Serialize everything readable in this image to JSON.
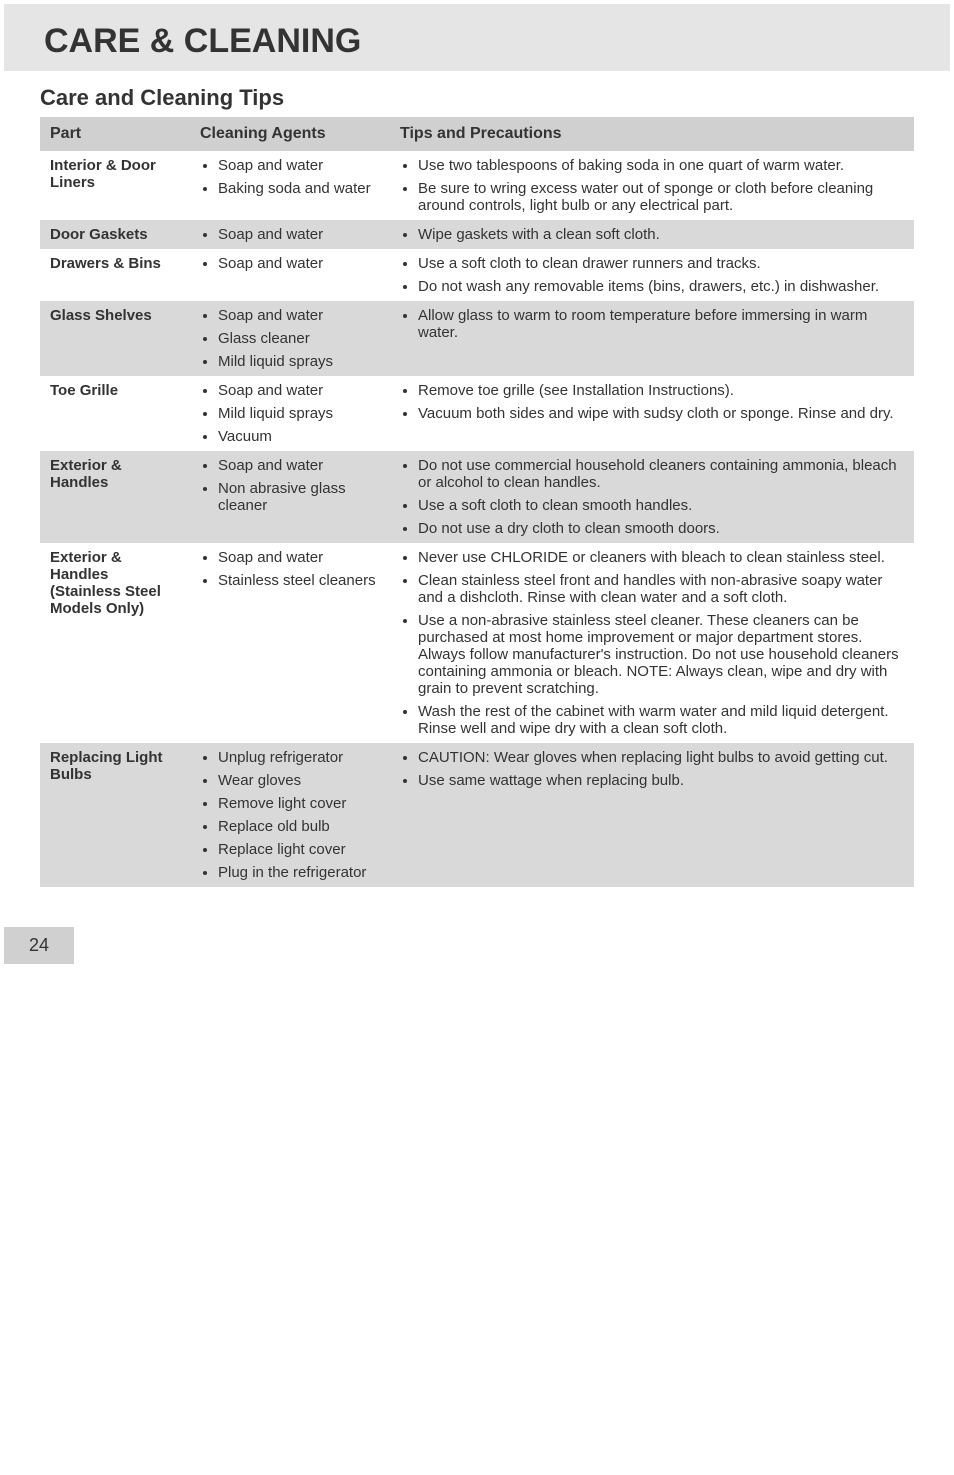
{
  "colors": {
    "header_band": "#e5e5e5",
    "table_header": "#d0d0d0",
    "row_even": "#d9d9d9",
    "row_odd": "#ffffff",
    "text": "#333333",
    "background": "#ffffff",
    "footer_bg": "#d0d0d0"
  },
  "typography": {
    "title_size": 34,
    "subtitle_size": 22,
    "body_size": 15,
    "header_size": 16,
    "font_family": "Arial"
  },
  "title": "CARE & CLEANING",
  "subtitle": "Care and Cleaning Tips",
  "columns": {
    "part": "Part",
    "agents": "Cleaning Agents",
    "tips": "Tips and Precautions"
  },
  "rows": [
    {
      "part": "Interior & Door Liners",
      "agents": [
        "Soap and water",
        "Baking soda and water"
      ],
      "tips": [
        "Use two tablespoons of baking soda in one quart of warm water.",
        "Be sure to wring excess water out of sponge or cloth before cleaning around controls, light bulb or any electrical part."
      ]
    },
    {
      "part": "Door Gaskets",
      "agents": [
        "Soap and water"
      ],
      "tips": [
        "Wipe gaskets with a clean soft cloth."
      ]
    },
    {
      "part": "Drawers & Bins",
      "agents": [
        "Soap and water"
      ],
      "tips": [
        "Use a soft cloth to clean drawer runners and tracks.",
        "Do not wash any removable items (bins, drawers, etc.) in dishwasher."
      ]
    },
    {
      "part": "Glass Shelves",
      "agents": [
        "Soap and water",
        "Glass cleaner",
        "Mild liquid sprays"
      ],
      "tips": [
        "Allow glass to warm to room temperature before immersing in warm water."
      ]
    },
    {
      "part": "Toe Grille",
      "agents": [
        "Soap and water",
        "Mild liquid sprays",
        "Vacuum"
      ],
      "tips": [
        "Remove toe grille (see Installation Instructions).",
        "Vacuum both sides and wipe with sudsy cloth or sponge. Rinse and dry."
      ]
    },
    {
      "part": "Exterior & Handles",
      "agents": [
        "Soap and water",
        "Non abrasive glass cleaner"
      ],
      "tips": [
        "Do not use commercial household cleaners containing ammonia, bleach or alcohol to clean handles.",
        "Use a soft cloth to clean smooth handles.",
        "Do not use a dry cloth to clean smooth doors."
      ]
    },
    {
      "part": "Exterior & Handles (Stainless Steel Models Only)",
      "agents": [
        "Soap and water",
        "Stainless steel cleaners"
      ],
      "tips": [
        "Never use CHLORIDE or cleaners with bleach to clean stainless steel.",
        "Clean stainless steel front and handles with non-abrasive soapy water and a dishcloth. Rinse with clean water and a soft cloth.",
        "Use a non-abrasive stainless steel cleaner. These cleaners can be purchased at most home improvement or major department stores. Always follow manufacturer's instruction. Do not use household cleaners containing ammonia or bleach. NOTE: Always clean, wipe and dry with grain to prevent scratching.",
        "Wash the rest of the cabinet with warm water and mild liquid detergent. Rinse well and wipe dry with a clean soft cloth."
      ]
    },
    {
      "part": "Replacing Light Bulbs",
      "agents": [
        "Unplug refrigerator",
        "Wear gloves",
        "Remove light cover",
        "Replace old bulb",
        "Replace light cover",
        "Plug in the refrigerator"
      ],
      "tips": [
        "CAUTION: Wear gloves when replacing light bulbs to avoid getting cut.",
        "Use same wattage when replacing bulb."
      ]
    }
  ],
  "page_number": "24"
}
